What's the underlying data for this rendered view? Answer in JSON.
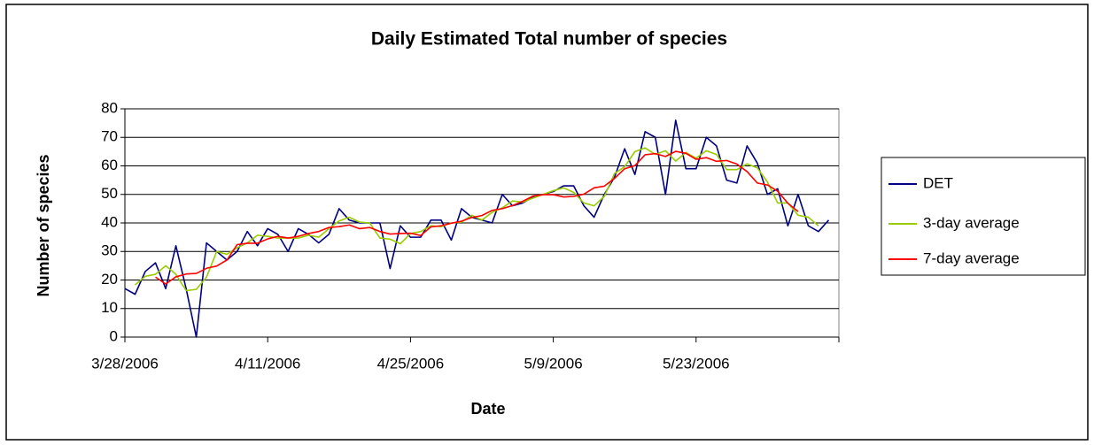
{
  "chart_data": {
    "type": "line",
    "title": "Daily Estimated Total number of species",
    "x_label": "Date",
    "y_label": "Number of species",
    "x": [
      "3/28/2006",
      "3/29/2006",
      "3/30/2006",
      "3/31/2006",
      "4/1/2006",
      "4/2/2006",
      "4/3/2006",
      "4/4/2006",
      "4/5/2006",
      "4/6/2006",
      "4/7/2006",
      "4/8/2006",
      "4/9/2006",
      "4/10/2006",
      "4/11/2006",
      "4/12/2006",
      "4/13/2006",
      "4/14/2006",
      "4/15/2006",
      "4/16/2006",
      "4/17/2006",
      "4/18/2006",
      "4/19/2006",
      "4/20/2006",
      "4/21/2006",
      "4/22/2006",
      "4/23/2006",
      "4/24/2006",
      "4/25/2006",
      "4/26/2006",
      "4/27/2006",
      "4/28/2006",
      "4/29/2006",
      "4/30/2006",
      "5/1/2006",
      "5/2/2006",
      "5/3/2006",
      "5/4/2006",
      "5/5/2006",
      "5/6/2006",
      "5/7/2006",
      "5/8/2006",
      "5/9/2006",
      "5/10/2006",
      "5/11/2006",
      "5/12/2006",
      "5/13/2006",
      "5/14/2006",
      "5/15/2006",
      "5/16/2006",
      "5/17/2006",
      "5/18/2006",
      "5/19/2006",
      "5/20/2006",
      "5/21/2006",
      "5/22/2006",
      "5/23/2006",
      "5/24/2006",
      "5/25/2006",
      "5/26/2006",
      "5/27/2006",
      "5/28/2006",
      "5/29/2006",
      "5/30/2006",
      "5/31/2006",
      "6/1/2006",
      "6/2/2006",
      "6/3/2006",
      "6/4/2006",
      "6/5/2006"
    ],
    "series": [
      {
        "name": "DET",
        "color": "#000080",
        "values": [
          17,
          15,
          23,
          26,
          17,
          32,
          17,
          0,
          33,
          30,
          27,
          30,
          37,
          32,
          38,
          36,
          30,
          38,
          36,
          33,
          36,
          45,
          41,
          40,
          40,
          40,
          24,
          39,
          35,
          35,
          41,
          41,
          34,
          45,
          42,
          41,
          40,
          50,
          46,
          47,
          49,
          50,
          51,
          53,
          53,
          46,
          42,
          50,
          56,
          66,
          57,
          72,
          70,
          50,
          76,
          59,
          59,
          70,
          67,
          55,
          54,
          67,
          61,
          50,
          52,
          39,
          50,
          39,
          37,
          41
        ]
      },
      {
        "name": "3-day average",
        "color": "#99cc00",
        "values": [
          null,
          18.3,
          21.3,
          22,
          25,
          22,
          16.3,
          16.7,
          21,
          30,
          29,
          31.3,
          33,
          35.7,
          35.3,
          34.7,
          34.7,
          34.7,
          35.7,
          35,
          38,
          40.7,
          42,
          40.3,
          40,
          34.7,
          34.3,
          32.7,
          36.3,
          37,
          39,
          38.7,
          40,
          40.3,
          42.7,
          41,
          43.7,
          45.3,
          47.7,
          47.3,
          48.7,
          50,
          51.3,
          52.3,
          50.7,
          47,
          46,
          49.3,
          57.3,
          59.7,
          65,
          66.3,
          64,
          65.3,
          61.7,
          64.7,
          62.7,
          65.3,
          64,
          58.7,
          58.7,
          60.7,
          59.3,
          54.3,
          47,
          47,
          42.7,
          42,
          39,
          null
        ]
      },
      {
        "name": "7-day average",
        "color": "#ff0000",
        "values": [
          null,
          null,
          null,
          21,
          18.6,
          21.1,
          22.1,
          22.3,
          24.1,
          24.9,
          27,
          32.4,
          32.9,
          32.9,
          34.4,
          35.3,
          34.7,
          35.3,
          36.3,
          37,
          38.4,
          38.7,
          39.3,
          38,
          38.4,
          37,
          36.1,
          36.3,
          36.4,
          35.6,
          38.6,
          39,
          39.9,
          40.6,
          41.9,
          42.6,
          44.4,
          45,
          46.1,
          47.6,
          49.4,
          49.9,
          49.9,
          49.1,
          49.3,
          50.1,
          52.3,
          52.9,
          55.6,
          59,
          60.1,
          63.9,
          64.3,
          63.3,
          65.1,
          64.4,
          62.3,
          62.9,
          61.6,
          61.9,
          60.6,
          58,
          54,
          53.3,
          51.1,
          46.9,
          44,
          null,
          null,
          null
        ]
      }
    ],
    "xlim": [
      "3/28/2006",
      "6/6/2006"
    ],
    "xticks": [
      "3/28/2006",
      "4/11/2006",
      "4/25/2006",
      "5/9/2006",
      "5/23/2006"
    ],
    "ylim": [
      0,
      80
    ],
    "yticks": [
      0,
      10,
      20,
      30,
      40,
      50,
      60,
      70,
      80
    ],
    "grid": true,
    "legend": "right"
  }
}
